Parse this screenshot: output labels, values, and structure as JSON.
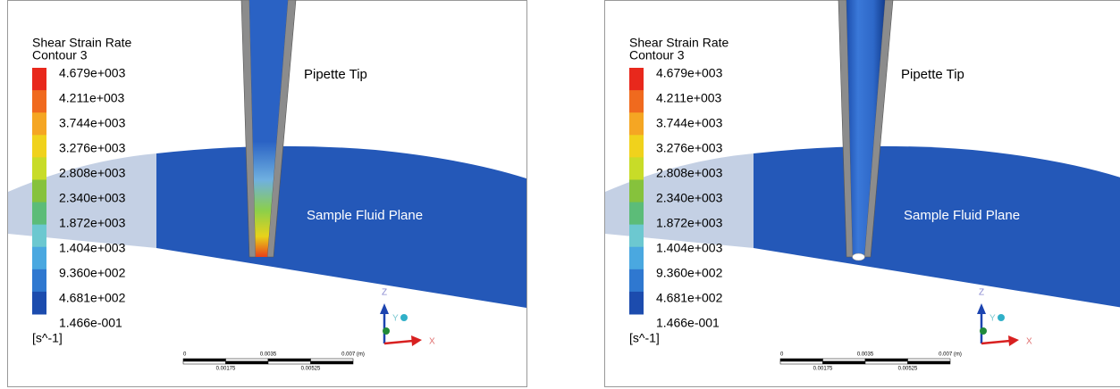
{
  "panels": [
    {
      "legend": {
        "title": "Shear Strain Rate",
        "subtitle": "Contour 3",
        "values": [
          "4.679e+003",
          "4.211e+003",
          "3.744e+003",
          "3.276e+003",
          "2.808e+003",
          "2.340e+003",
          "1.872e+003",
          "1.404e+003",
          "9.360e+002",
          "4.681e+002",
          "1.466e-001"
        ],
        "unit": "[s^-1]"
      },
      "labels": {
        "pipette": "Pipette Tip",
        "plane": "Sample Fluid Plane"
      },
      "scale_bar": {
        "top": [
          "0",
          "0.0035",
          "0.007 (m)"
        ],
        "bottom": [
          "0.00175",
          "0.00525"
        ]
      },
      "axes": {
        "z": "Z",
        "y": "Y",
        "x": "X"
      }
    },
    {
      "legend": {
        "title": "Shear Strain Rate",
        "subtitle": "Contour 3",
        "values": [
          "4.679e+003",
          "4.211e+003",
          "3.744e+003",
          "3.276e+003",
          "2.808e+003",
          "2.340e+003",
          "1.872e+003",
          "1.404e+003",
          "9.360e+002",
          "4.681e+002",
          "1.466e-001"
        ],
        "unit": "[s^-1]"
      },
      "labels": {
        "pipette": "Pipette Tip",
        "plane": "Sample Fluid Plane"
      },
      "scale_bar": {
        "top": [
          "0",
          "0.0035",
          "0.007 (m)"
        ],
        "bottom": [
          "0.00175",
          "0.00525"
        ]
      },
      "axes": {
        "z": "Z",
        "y": "Y",
        "x": "X"
      }
    }
  ]
}
